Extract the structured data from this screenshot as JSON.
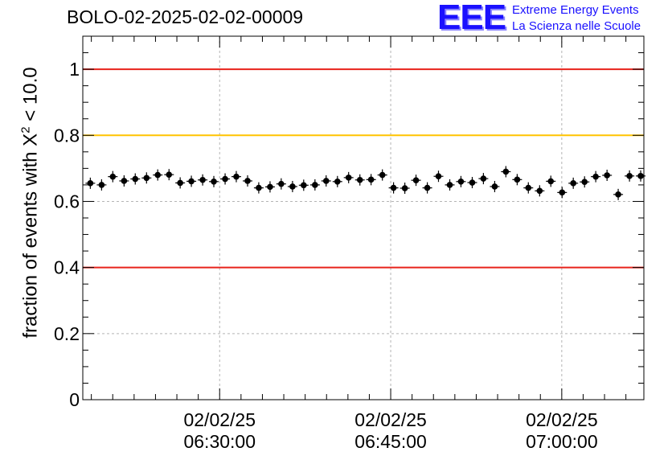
{
  "title": "BOLO-02-2025-02-02-00009",
  "logo": {
    "letters": "EEE",
    "line1": "Extreme Energy Events",
    "line2": "La Scienza nelle Scuole",
    "color": "#1a10ff"
  },
  "ylabel": {
    "prefix": "fraction of events with ",
    "symbol": "X",
    "exponent": "2",
    "suffix": " < 10.0"
  },
  "chart_data": {
    "type": "scatter",
    "title": "BOLO-02-2025-02-02-00009",
    "ylim": [
      0,
      1.1
    ],
    "xlim_minutes": [
      -12.0,
      37.2
    ],
    "yticks": [
      "0",
      "0.2",
      "0.4",
      "0.6",
      "0.8",
      "1"
    ],
    "ytick_values": [
      0,
      0.2,
      0.4,
      0.6,
      0.8,
      1.0
    ],
    "xticks": [
      {
        "minute": 0,
        "date": "02/02/25",
        "time": "06:30:00"
      },
      {
        "minute": 15,
        "date": "02/02/25",
        "time": "06:45:00"
      },
      {
        "minute": 30,
        "date": "02/02/25",
        "time": "07:00:00"
      }
    ],
    "grid": true,
    "reference_lines": [
      {
        "y": 1.0,
        "color": "#e8231b"
      },
      {
        "y": 0.8,
        "color": "#ffc400"
      },
      {
        "y": 0.4,
        "color": "#e8231b"
      }
    ],
    "series": [
      {
        "marker_color": "#000000",
        "x_minutes": [
          -11.34,
          -10.35,
          -9.37,
          -8.38,
          -7.4,
          -6.41,
          -5.43,
          -4.44,
          -3.46,
          -2.48,
          -1.49,
          -0.51,
          0.48,
          1.46,
          2.45,
          3.43,
          4.42,
          5.4,
          6.39,
          7.37,
          8.36,
          9.34,
          10.33,
          11.31,
          12.3,
          13.28,
          14.27,
          15.25,
          16.24,
          17.22,
          18.21,
          19.19,
          20.18,
          21.16,
          22.15,
          23.13,
          24.12,
          25.1,
          26.09,
          27.07,
          28.06,
          29.04,
          30.03,
          31.01,
          32.0,
          32.98,
          33.97,
          34.95,
          35.94,
          36.92
        ],
        "y": [
          0.655,
          0.65,
          0.675,
          0.662,
          0.668,
          0.671,
          0.68,
          0.681,
          0.656,
          0.661,
          0.665,
          0.66,
          0.668,
          0.675,
          0.662,
          0.641,
          0.644,
          0.653,
          0.645,
          0.649,
          0.65,
          0.662,
          0.66,
          0.672,
          0.665,
          0.666,
          0.68,
          0.641,
          0.64,
          0.664,
          0.641,
          0.676,
          0.65,
          0.66,
          0.657,
          0.669,
          0.645,
          0.69,
          0.666,
          0.641,
          0.632,
          0.661,
          0.627,
          0.655,
          0.659,
          0.675,
          0.679,
          0.621,
          0.677,
          0.677
        ]
      }
    ]
  }
}
